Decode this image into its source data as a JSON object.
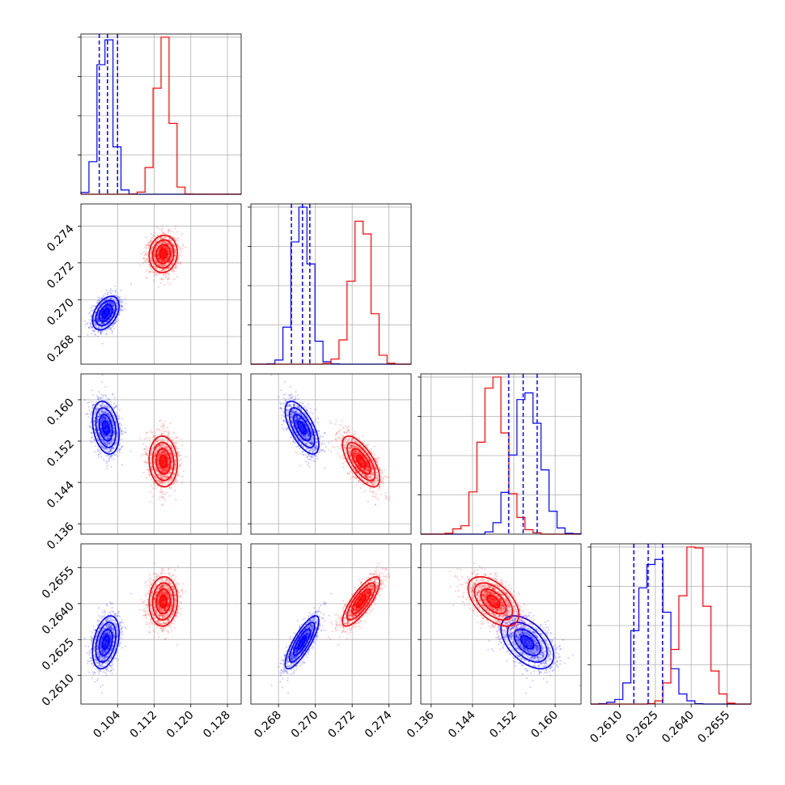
{
  "chart_data": {
    "type": "scatter",
    "grid": true,
    "colors": {
      "series_a": "#0000ff",
      "series_b": "#ff0000"
    },
    "parameters": [
      {
        "range": [
          0.096,
          0.131
        ],
        "ticks": [
          "0.104",
          "0.112",
          "0.120",
          "0.128"
        ]
      },
      {
        "range": [
          0.2665,
          0.2752
        ],
        "ticks": [
          "0.268",
          "0.270",
          "0.272",
          "0.274"
        ]
      },
      {
        "range": [
          0.134,
          0.165
        ],
        "ticks": [
          "0.136",
          "0.144",
          "0.152",
          "0.160"
        ]
      },
      {
        "range": [
          0.2598,
          0.2665
        ],
        "ticks": [
          "0.2610",
          "0.2625",
          "0.2640",
          "0.2655"
        ]
      }
    ],
    "series": [
      {
        "color": "#0000ff",
        "mean": [
          0.1015,
          0.2693,
          0.1545,
          0.2624
        ],
        "sd": [
          0.0015,
          0.00045,
          0.0025,
          0.00055
        ],
        "quantiles_16_50_84": [
          [
            0.1,
            0.1018,
            0.104
          ],
          [
            0.2687,
            0.2693,
            0.2697
          ],
          [
            0.151,
            0.1538,
            0.1565
          ],
          [
            0.2616,
            0.2622,
            0.2628
          ]
        ]
      },
      {
        "color": "#ff0000",
        "mean": [
          0.114,
          0.2725,
          0.148,
          0.2641
        ],
        "sd": [
          0.0015,
          0.0005,
          0.0025,
          0.0005
        ]
      }
    ],
    "correlations": [
      {
        "pair": [
          0,
          1
        ],
        "a": 0.4,
        "b": 0.1
      },
      {
        "pair": [
          0,
          2
        ],
        "a": 0.3,
        "b": 0.0
      },
      {
        "pair": [
          0,
          3
        ],
        "a": 0.0,
        "b": 0.2
      },
      {
        "pair": [
          1,
          2
        ],
        "a": 0.65,
        "b": 0.7
      },
      {
        "pair": [
          1,
          3
        ],
        "a": 0.8,
        "b": 0.8
      },
      {
        "pair": [
          2,
          3
        ],
        "a": 0.5,
        "b": 0.5
      }
    ]
  }
}
